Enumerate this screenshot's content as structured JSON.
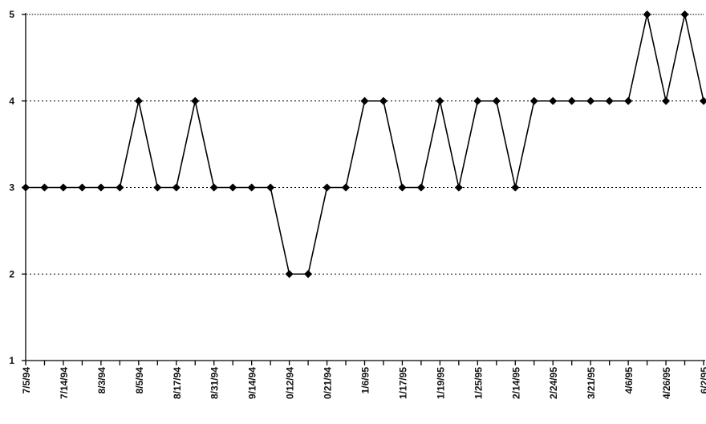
{
  "chart_data": {
    "type": "line",
    "title": "",
    "xlabel": "",
    "ylabel": "",
    "ylim": [
      1,
      5
    ],
    "yticks": [
      "1",
      "2",
      "3",
      "4",
      "5"
    ],
    "grid": "horizontal dotted",
    "legend": "none",
    "x_tick_labels": [
      "7/5/94",
      "7/14/94",
      "8/3/94",
      "8/5/94",
      "8/17/94",
      "8/31/94",
      "9/14/94",
      "0/12/94",
      "0/21/94",
      "1/6/95",
      "1/17/95",
      "1/19/95",
      "1/25/95",
      "2/14/95",
      "2/24/95",
      "3/21/95",
      "4/6/95",
      "4/26/95",
      "6/2/95"
    ],
    "series": [
      {
        "values": [
          3,
          3,
          3,
          3,
          3,
          3,
          4,
          3,
          3,
          4,
          3,
          3,
          3,
          3,
          2,
          2,
          3,
          3,
          4,
          4,
          3,
          3,
          4,
          3,
          4,
          4,
          3,
          4,
          4,
          4,
          4,
          4,
          4,
          5,
          4,
          5,
          4
        ]
      }
    ],
    "colors": {
      "line": "#000000",
      "marker": "#000000"
    }
  }
}
